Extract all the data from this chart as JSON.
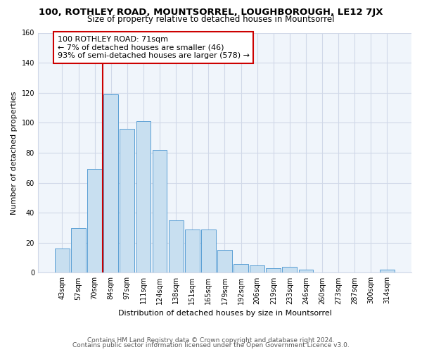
{
  "title": "100, ROTHLEY ROAD, MOUNTSORREL, LOUGHBOROUGH, LE12 7JX",
  "subtitle": "Size of property relative to detached houses in Mountsorrel",
  "xlabel": "Distribution of detached houses by size in Mountsorrel",
  "ylabel": "Number of detached properties",
  "bar_labels": [
    "43sqm",
    "57sqm",
    "70sqm",
    "84sqm",
    "97sqm",
    "111sqm",
    "124sqm",
    "138sqm",
    "151sqm",
    "165sqm",
    "179sqm",
    "192sqm",
    "206sqm",
    "219sqm",
    "233sqm",
    "246sqm",
    "260sqm",
    "273sqm",
    "287sqm",
    "300sqm",
    "314sqm"
  ],
  "bar_values": [
    16,
    30,
    69,
    119,
    96,
    101,
    82,
    35,
    29,
    29,
    15,
    6,
    5,
    3,
    4,
    2,
    0,
    0,
    0,
    0,
    2
  ],
  "bar_color": "#c8dff0",
  "bar_edge_color": "#5a9fd4",
  "ylim": [
    0,
    160
  ],
  "yticks": [
    0,
    20,
    40,
    60,
    80,
    100,
    120,
    140,
    160
  ],
  "annotation_title": "100 ROTHLEY ROAD: 71sqm",
  "annotation_line1": "← 7% of detached houses are smaller (46)",
  "annotation_line2": "93% of semi-detached houses are larger (578) →",
  "marker_bar_index": 2,
  "footer_line1": "Contains HM Land Registry data © Crown copyright and database right 2024.",
  "footer_line2": "Contains public sector information licensed under the Open Government Licence v3.0.",
  "background_color": "#ffffff",
  "plot_bg_color": "#f0f5fb",
  "grid_color": "#d0d8e8",
  "annotation_box_color": "#ffffff",
  "annotation_box_edge": "#cc0000",
  "marker_line_color": "#cc0000",
  "title_fontsize": 9.5,
  "subtitle_fontsize": 8.5,
  "axis_label_fontsize": 8,
  "tick_fontsize": 7,
  "annotation_fontsize": 8,
  "footer_fontsize": 6.5
}
